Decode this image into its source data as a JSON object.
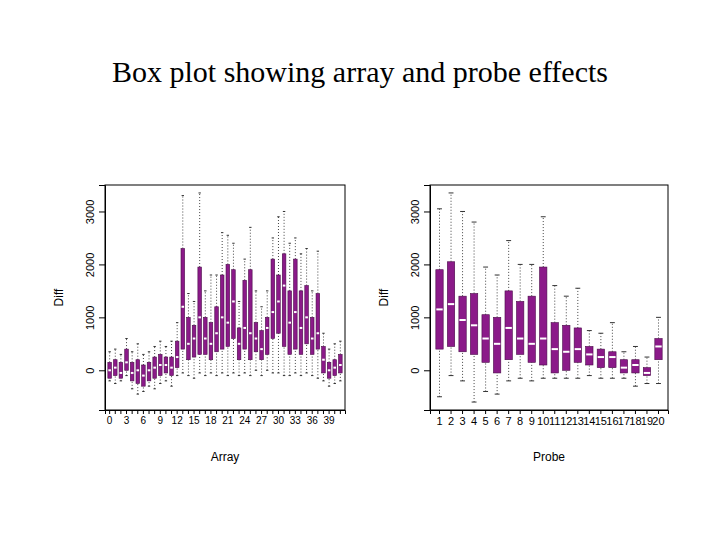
{
  "title": "Box plot showing array and probe effects",
  "chart_data": [
    {
      "type": "box",
      "xlabel": "Array",
      "ylabel": "Diff",
      "color": "#8b1a89",
      "categories": [
        0,
        null,
        null,
        3,
        null,
        null,
        6,
        null,
        null,
        9,
        null,
        null,
        12,
        null,
        null,
        15,
        null,
        null,
        18,
        null,
        null,
        21,
        null,
        null,
        24,
        null,
        null,
        27,
        null,
        null,
        30,
        null,
        null,
        33,
        null,
        null,
        36,
        null,
        null,
        39,
        null,
        null
      ],
      "whisker_low": [
        -200,
        -250,
        -200,
        -100,
        -350,
        -450,
        -400,
        -300,
        -350,
        -250,
        -200,
        -300,
        -100,
        -50,
        -100,
        -150,
        -50,
        -100,
        -50,
        -100,
        -50,
        -100,
        -50,
        -100,
        -50,
        -100,
        0,
        -100,
        0,
        -50,
        -50,
        -100,
        -100,
        -50,
        -100,
        -50,
        -100,
        -150,
        -200,
        -300,
        -250,
        -200
      ],
      "q1": [
        -150,
        -100,
        -150,
        0,
        -200,
        -250,
        -300,
        -200,
        -150,
        -100,
        -50,
        -100,
        50,
        400,
        200,
        250,
        300,
        300,
        200,
        350,
        400,
        450,
        600,
        200,
        400,
        200,
        350,
        200,
        300,
        600,
        700,
        450,
        300,
        400,
        300,
        500,
        300,
        400,
        -50,
        -150,
        -100,
        -50
      ],
      "median": [
        0,
        50,
        -50,
        150,
        -50,
        0,
        -100,
        0,
        50,
        100,
        100,
        50,
        250,
        1200,
        500,
        600,
        1000,
        600,
        500,
        700,
        1000,
        900,
        1300,
        500,
        800,
        700,
        600,
        400,
        800,
        1100,
        1300,
        1600,
        900,
        1100,
        800,
        1000,
        600,
        700,
        200,
        0,
        50,
        100
      ],
      "q3": [
        150,
        200,
        150,
        400,
        150,
        200,
        100,
        150,
        250,
        300,
        250,
        250,
        550,
        2300,
        1000,
        850,
        1950,
        1000,
        900,
        1200,
        1800,
        2000,
        1900,
        800,
        1700,
        1900,
        900,
        750,
        1000,
        2100,
        1800,
        2200,
        1500,
        2100,
        1500,
        1600,
        1000,
        1450,
        450,
        150,
        200,
        300
      ],
      "whisker_high": [
        350,
        400,
        300,
        600,
        350,
        500,
        300,
        350,
        450,
        550,
        450,
        550,
        900,
        3300,
        1450,
        1300,
        3350,
        1500,
        1800,
        1800,
        2600,
        2550,
        2400,
        1300,
        2100,
        2700,
        1500,
        1200,
        1500,
        2500,
        2900,
        3000,
        2400,
        2500,
        2200,
        2300,
        1500,
        2250,
        700,
        400,
        500,
        550
      ],
      "ylim": [
        -750,
        3500
      ],
      "yticks": [
        0,
        1000,
        2000,
        3000
      ]
    },
    {
      "type": "box",
      "xlabel": "Probe",
      "ylabel": "Diff",
      "color": "#8b1a89",
      "categories": [
        1,
        2,
        3,
        4,
        5,
        6,
        7,
        8,
        9,
        10,
        11,
        12,
        13,
        14,
        15,
        16,
        17,
        18,
        19,
        20
      ],
      "whisker_low": [
        -500,
        -100,
        -200,
        -600,
        -400,
        -450,
        -200,
        -150,
        -200,
        -150,
        -150,
        -150,
        -150,
        -100,
        -150,
        -150,
        -150,
        -300,
        -250,
        -250
      ],
      "q1": [
        400,
        450,
        350,
        300,
        150,
        -50,
        200,
        300,
        150,
        100,
        -50,
        0,
        150,
        100,
        50,
        50,
        -50,
        -50,
        -100,
        200
      ],
      "median": [
        1150,
        1250,
        950,
        850,
        600,
        500,
        800,
        600,
        500,
        600,
        400,
        350,
        400,
        300,
        250,
        250,
        50,
        100,
        -50,
        450
      ],
      "q3": [
        1900,
        2050,
        1400,
        1450,
        1050,
        1000,
        1500,
        1300,
        1400,
        1950,
        900,
        850,
        800,
        450,
        400,
        350,
        200,
        200,
        50,
        600
      ],
      "whisker_high": [
        3050,
        3350,
        3000,
        2800,
        1950,
        1800,
        2450,
        2000,
        2000,
        2900,
        1600,
        1400,
        1550,
        750,
        700,
        900,
        350,
        450,
        250,
        1000
      ],
      "ylim": [
        -750,
        3500
      ],
      "yticks": [
        0,
        1000,
        2000,
        3000
      ]
    }
  ]
}
